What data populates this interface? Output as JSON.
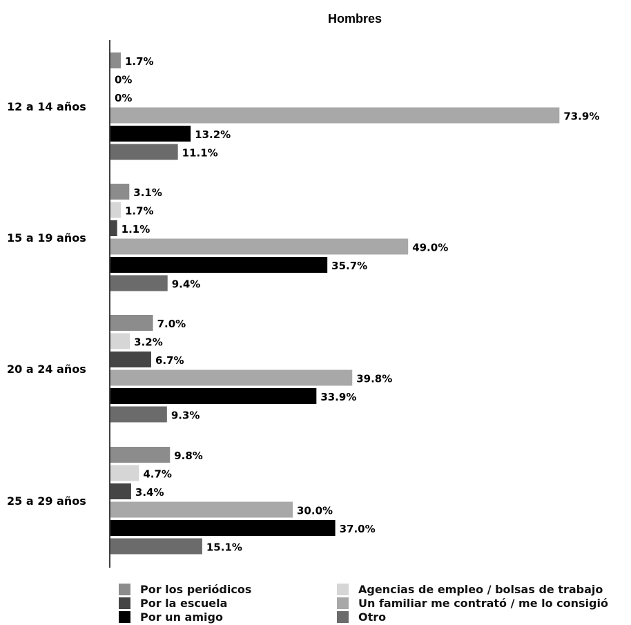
{
  "chart_data": {
    "type": "bar",
    "orientation": "horizontal",
    "title": "Hombres",
    "xlabel": "",
    "ylabel": "",
    "categories": [
      "12 a 14 años",
      "15 a 19 años",
      "20 a 24 años",
      "25 a 29 años"
    ],
    "xlim": [
      0,
      100
    ],
    "grid": false,
    "legend_position": "bottom",
    "series": [
      {
        "name": "Por los periódicos",
        "color": "#8c8c8c",
        "values": [
          1.7,
          3.1,
          7.0,
          9.8
        ],
        "labels": [
          "1.7%",
          "3.1%",
          "7.0%",
          "9.8%"
        ]
      },
      {
        "name": "Agencias de empleo / bolsas de trabajo",
        "color": "#d6d6d6",
        "values": [
          0,
          1.7,
          3.2,
          4.7
        ],
        "labels": [
          "0%",
          "1.7%",
          "3.2%",
          "4.7%"
        ]
      },
      {
        "name": "Por la escuela",
        "color": "#454545",
        "values": [
          0,
          1.1,
          6.7,
          3.4
        ],
        "labels": [
          "0%",
          "1.1%",
          "6.7%",
          "3.4%"
        ]
      },
      {
        "name": "Un familiar me contrató / me lo consigió",
        "color": "#a8a8a8",
        "values": [
          73.9,
          49.0,
          39.8,
          30.0
        ],
        "labels": [
          "73.9%",
          "49.0%",
          "39.8%",
          "30.0%"
        ]
      },
      {
        "name": "Por un amigo",
        "color": "#000000",
        "values": [
          13.2,
          35.7,
          33.9,
          37.0
        ],
        "labels": [
          "13.2%",
          "35.7%",
          "33.9%",
          "37.0%"
        ]
      },
      {
        "name": "Otro",
        "color": "#6b6b6b",
        "values": [
          11.1,
          9.4,
          9.3,
          15.1
        ],
        "labels": [
          "11.1%",
          "9.4%",
          "9.3%",
          "15.1%"
        ]
      }
    ]
  }
}
